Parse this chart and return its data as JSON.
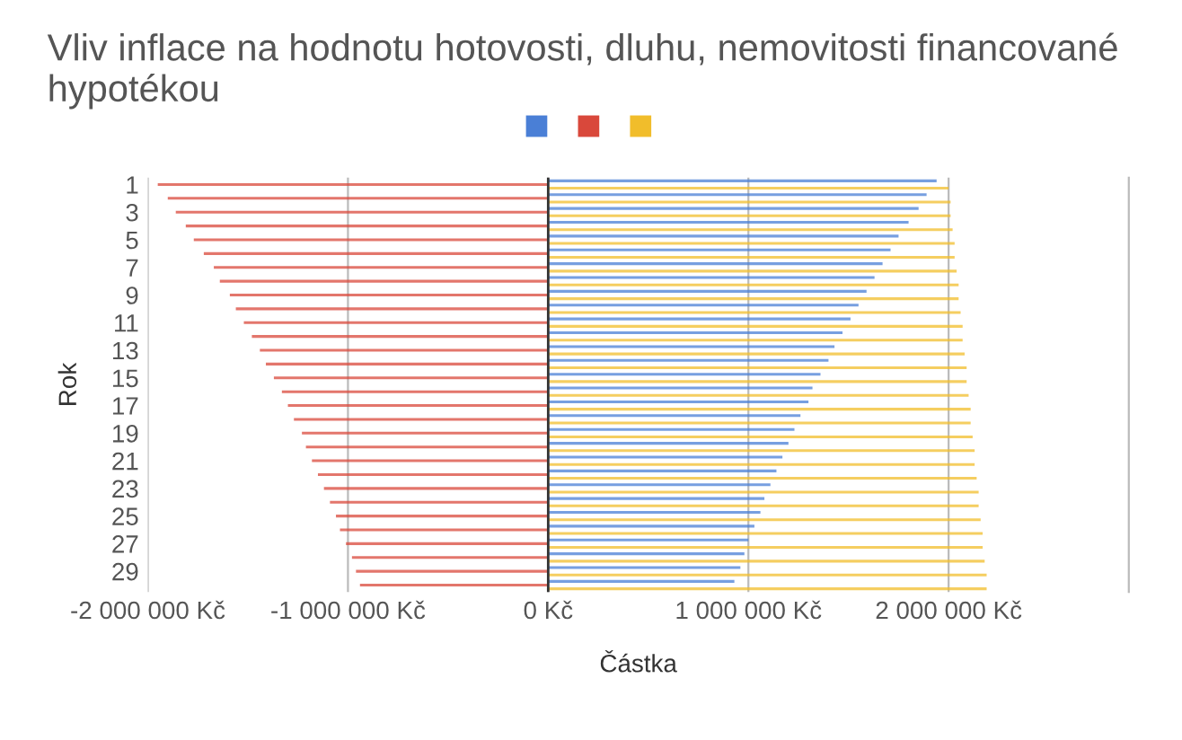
{
  "chart_data": {
    "type": "bar",
    "orientation": "horizontal",
    "title": "Vliv inflace na hodnotu hotovosti, dluhu, nemovitosti financované hypotékou",
    "xlabel": "Částka",
    "ylabel": "Rok",
    "categories": [
      "1",
      null,
      "3",
      null,
      "5",
      null,
      "7",
      null,
      "9",
      null,
      "11",
      null,
      "13",
      null,
      "15",
      null,
      "17",
      null,
      "19",
      null,
      "21",
      null,
      "23",
      null,
      "25",
      null,
      "27",
      null,
      "29",
      null
    ],
    "series": [
      {
        "color": "#4a7fd6",
        "values": [
          1940000,
          1890000,
          1850000,
          1800000,
          1750000,
          1710000,
          1670000,
          1630000,
          1590000,
          1550000,
          1510000,
          1470000,
          1430000,
          1400000,
          1360000,
          1320000,
          1300000,
          1260000,
          1230000,
          1200000,
          1170000,
          1140000,
          1110000,
          1080000,
          1060000,
          1030000,
          1000000,
          980000,
          960000,
          930000
        ]
      },
      {
        "color": "#d9483b",
        "values": [
          -1950000,
          -1900000,
          -1860000,
          -1810000,
          -1770000,
          -1720000,
          -1670000,
          -1640000,
          -1590000,
          -1560000,
          -1520000,
          -1480000,
          -1440000,
          -1410000,
          -1370000,
          -1330000,
          -1300000,
          -1270000,
          -1230000,
          -1210000,
          -1180000,
          -1150000,
          -1120000,
          -1090000,
          -1060000,
          -1040000,
          -1010000,
          -980000,
          -960000,
          -940000
        ]
      },
      {
        "color": "#f1bd2b",
        "values": [
          2000000,
          2010000,
          2010000,
          2020000,
          2030000,
          2030000,
          2040000,
          2050000,
          2050000,
          2060000,
          2070000,
          2070000,
          2080000,
          2090000,
          2090000,
          2100000,
          2110000,
          2110000,
          2120000,
          2130000,
          2130000,
          2140000,
          2150000,
          2150000,
          2160000,
          2170000,
          2170000,
          2180000,
          2190000,
          2190000
        ]
      }
    ],
    "xlim": [
      -2000000,
      2900000
    ],
    "xticks": [
      {
        "value": -2000000,
        "label": "-2 000 000 Kč"
      },
      {
        "value": -1000000,
        "label": "-1 000 000 Kč"
      },
      {
        "value": 0,
        "label": "0 Kč"
      },
      {
        "value": 1000000,
        "label": "1 000 000 Kč"
      },
      {
        "value": 2000000,
        "label": "2 000 000 Kč"
      }
    ],
    "grid": "x"
  }
}
